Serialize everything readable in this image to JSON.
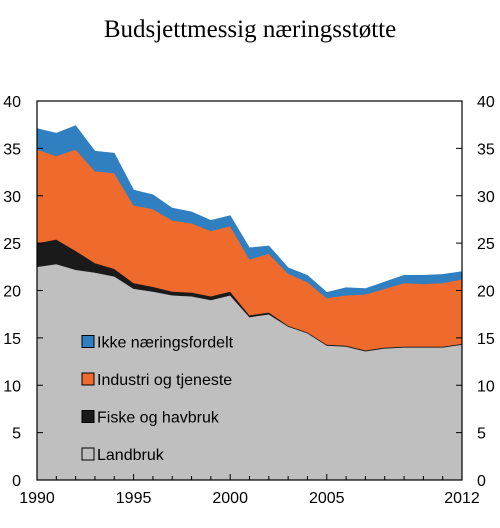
{
  "chart_data": {
    "type": "area",
    "title": "Budsjettmessig næringsstøtte",
    "ylim": [
      0,
      40
    ],
    "yticks": [
      0,
      5,
      10,
      15,
      20,
      25,
      30,
      35,
      40
    ],
    "xlim": [
      1990,
      2012
    ],
    "xticks": [
      1990,
      1995,
      2000,
      2005,
      2012
    ],
    "x": [
      1990,
      1991,
      1992,
      1993,
      1994,
      1995,
      1996,
      1997,
      1998,
      1999,
      2000,
      2001,
      2002,
      2003,
      2004,
      2005,
      2006,
      2007,
      2008,
      2009,
      2010,
      2011,
      2012
    ],
    "stacking": "stacked",
    "series": [
      {
        "name": "Landbruk",
        "color": "#bfbfbf",
        "values": [
          22.5,
          22.8,
          22.2,
          21.9,
          21.5,
          20.2,
          19.9,
          19.5,
          19.4,
          19.0,
          19.5,
          17.2,
          17.5,
          16.2,
          15.5,
          14.2,
          14.1,
          13.6,
          13.9,
          14.0,
          14.0,
          14.0,
          14.3
        ]
      },
      {
        "name": "Fiske og havbruk",
        "color": "#1a1a1a",
        "values": [
          2.5,
          2.6,
          2.0,
          1.0,
          0.8,
          0.6,
          0.5,
          0.4,
          0.4,
          0.4,
          0.4,
          0.2,
          0.2,
          0.1,
          0.1,
          0.1,
          0.1,
          0.1,
          0.1,
          0.1,
          0.1,
          0.1,
          0.1
        ]
      },
      {
        "name": "Industri og tjeneste",
        "color": "#ee6a2d",
        "values": [
          9.9,
          8.8,
          10.7,
          9.7,
          10.1,
          8.2,
          8.2,
          7.5,
          7.3,
          6.9,
          6.9,
          5.9,
          6.2,
          5.5,
          5.3,
          4.9,
          5.3,
          5.9,
          6.2,
          6.7,
          6.6,
          6.7,
          6.8
        ]
      },
      {
        "name": "Ikke næringsfordelt",
        "color": "#2f7fc1",
        "values": [
          2.2,
          2.4,
          2.5,
          2.1,
          2.1,
          1.6,
          1.5,
          1.3,
          1.2,
          1.1,
          1.1,
          1.2,
          0.8,
          0.6,
          0.7,
          0.6,
          0.8,
          0.6,
          0.7,
          0.8,
          0.9,
          0.9,
          0.8
        ]
      }
    ],
    "legend": {
      "placement": "lower-left inside plot",
      "items": [
        {
          "label": "Ikke næringsfordelt",
          "color": "#2f7fc1"
        },
        {
          "label": "Industri og tjeneste",
          "color": "#ee6a2d"
        },
        {
          "label": "Fiske og havbruk",
          "color": "#1a1a1a"
        },
        {
          "label": "Landbruk",
          "color": "#bfbfbf"
        }
      ]
    },
    "grid": false,
    "right_axis_mirrors_left": true
  }
}
